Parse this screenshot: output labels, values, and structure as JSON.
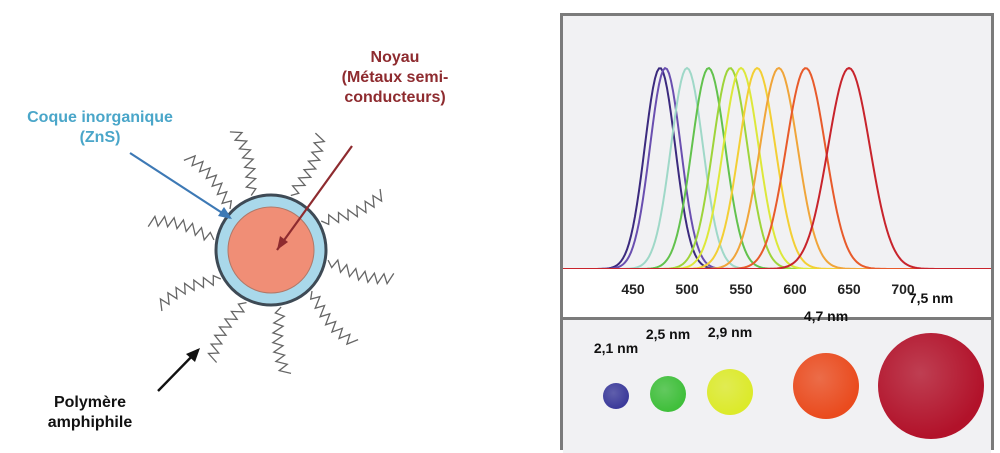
{
  "labels": {
    "core": [
      "Noyau",
      "(Métaux semi-",
      "conducteurs)"
    ],
    "shell": [
      "Coque inorganique",
      "(ZnS)"
    ],
    "polymer": [
      "Polymère",
      "amphiphile"
    ]
  },
  "colors": {
    "core_fill": "#f08e76",
    "shell_fill": "#a9d8ea",
    "shell_stroke": "#3e4a55",
    "core_label": "#8e2b2f",
    "shell_label": "#4aa6c9"
  },
  "spectrum": {
    "x_ticks": [
      "450",
      "500",
      "550",
      "600",
      "650",
      "700"
    ],
    "peaks": [
      {
        "peak": 475,
        "color": "#3b2a7e"
      },
      {
        "peak": 480,
        "color": "#6a4fb0"
      },
      {
        "peak": 500,
        "color": "#9fd8c8"
      },
      {
        "peak": 520,
        "color": "#62c24d"
      },
      {
        "peak": 540,
        "color": "#9ed43a"
      },
      {
        "peak": 550,
        "color": "#dde83a"
      },
      {
        "peak": 565,
        "color": "#f3cf35"
      },
      {
        "peak": 585,
        "color": "#f0a53a"
      },
      {
        "peak": 610,
        "color": "#e85b2b"
      },
      {
        "peak": 650,
        "color": "#c8242c"
      }
    ]
  },
  "particles": [
    {
      "label": "2,1 nm",
      "color": "#3b3a9a"
    },
    {
      "label": "2,5 nm",
      "color": "#3fbf3a"
    },
    {
      "label": "2,9 nm",
      "color": "#dcea2a"
    },
    {
      "label": "4,7 nm",
      "color": "#ea4b1e"
    },
    {
      "label": "7,5 nm",
      "color": "#b2122a"
    }
  ]
}
